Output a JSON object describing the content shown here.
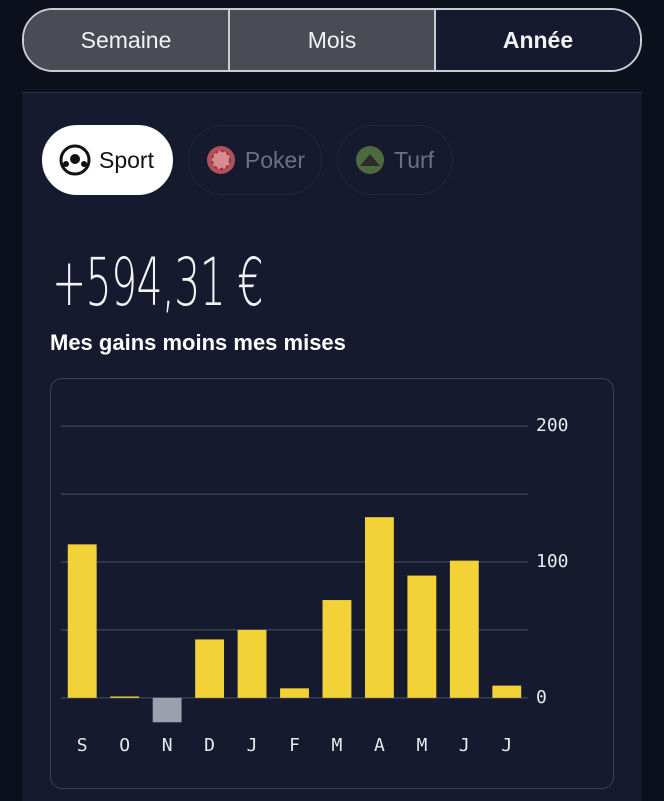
{
  "period_tabs": [
    "Semaine",
    "Mois",
    "Année"
  ],
  "selected_period_tab": 2,
  "sport_tabs": [
    "Sport",
    "Poker",
    "Turf"
  ],
  "selected_sport_tab": 0,
  "amount": "+594,31 €",
  "amount_caption": "Mes gains moins mes mises",
  "chart_data": {
    "type": "bar",
    "categories": [
      "S",
      "O",
      "N",
      "D",
      "J",
      "F",
      "M",
      "A",
      "M",
      "J",
      "J"
    ],
    "series": [
      {
        "color": "#f2d236",
        "negative_color": "#9aa0ad",
        "values": [
          113,
          1,
          -18,
          43,
          50,
          7,
          72,
          133,
          90,
          101,
          9
        ]
      }
    ],
    "ylim": [
      -20,
      220
    ],
    "yticks": [
      0,
      100,
      200
    ],
    "minor_yticks": [
      50,
      150
    ],
    "grid": true
  }
}
